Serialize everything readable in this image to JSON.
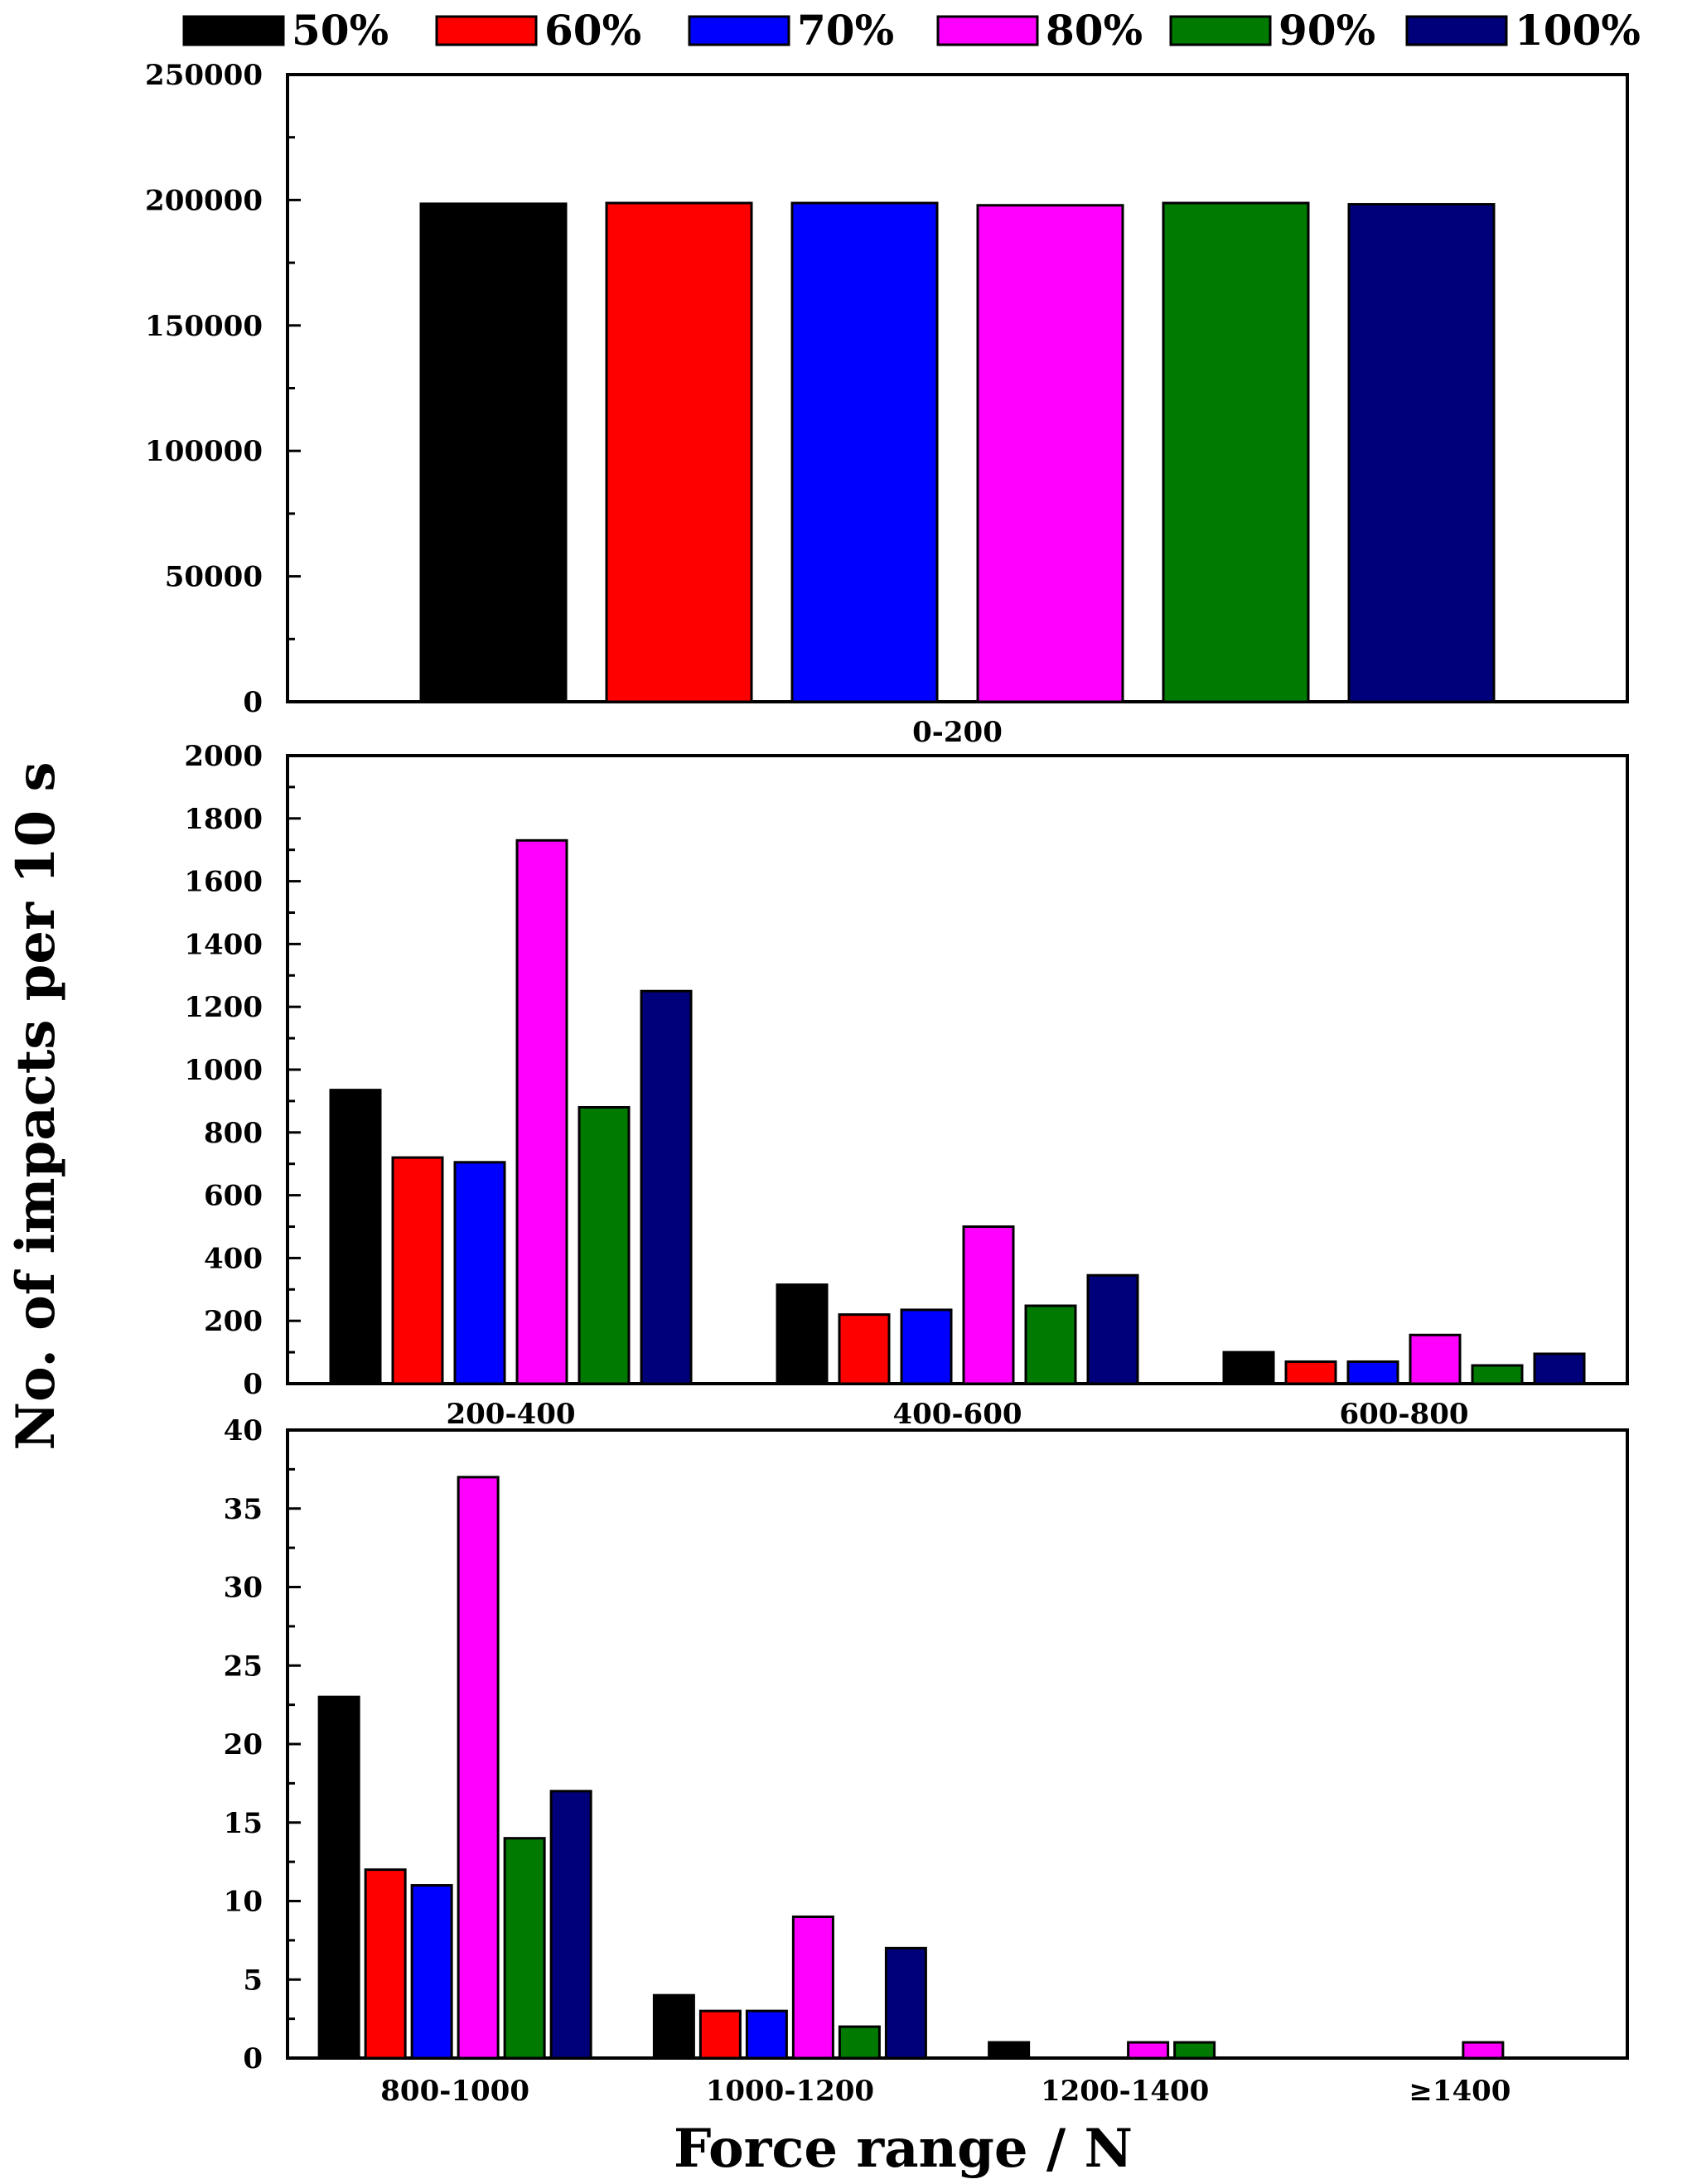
{
  "colors": {
    "50%": "#000000",
    "60%": "#ff0000",
    "70%": "#0000ff",
    "80%": "#ff00ff",
    "90%": "#007a00",
    "100%": "#00007a"
  },
  "legend": {
    "series": [
      "50%",
      "60%",
      "70%",
      "80%",
      "90%",
      "100%"
    ]
  },
  "chart_data": {
    "type": "bar",
    "ylabel": "No. of impacts per 10 s",
    "xlabel": "Force range / N",
    "series_names": [
      "50%",
      "60%",
      "70%",
      "80%",
      "90%",
      "100%"
    ],
    "panels": [
      {
        "categories": [
          "0-200"
        ],
        "ylim": [
          0,
          250000
        ],
        "yticks": [
          0,
          50000,
          100000,
          150000,
          200000,
          250000
        ],
        "ytick_labels": [
          "0",
          "50000",
          "100000",
          "150000",
          "200000",
          "250000"
        ],
        "series": [
          {
            "name": "50%",
            "values": [
              198500
            ]
          },
          {
            "name": "60%",
            "values": [
              198800
            ]
          },
          {
            "name": "70%",
            "values": [
              198800
            ]
          },
          {
            "name": "80%",
            "values": [
              197900
            ]
          },
          {
            "name": "90%",
            "values": [
              198800
            ]
          },
          {
            "name": "100%",
            "values": [
              198300
            ]
          }
        ]
      },
      {
        "categories": [
          "200-400",
          "400-600",
          "600-800"
        ],
        "ylim": [
          0,
          2000
        ],
        "yticks": [
          0,
          200,
          400,
          600,
          800,
          1000,
          1200,
          1400,
          1600,
          1800,
          2000
        ],
        "ytick_labels": [
          "0",
          "200",
          "400",
          "600",
          "800",
          "1000",
          "1200",
          "1400",
          "1600",
          "1800",
          "2000"
        ],
        "series": [
          {
            "name": "50%",
            "values": [
              935,
              315,
              100
            ]
          },
          {
            "name": "60%",
            "values": [
              720,
              220,
              70
            ]
          },
          {
            "name": "70%",
            "values": [
              705,
              235,
              70
            ]
          },
          {
            "name": "80%",
            "values": [
              1730,
              500,
              155
            ]
          },
          {
            "name": "90%",
            "values": [
              880,
              248,
              58
            ]
          },
          {
            "name": "100%",
            "values": [
              1250,
              345,
              95
            ]
          }
        ]
      },
      {
        "categories": [
          "800-1000",
          "1000-1200",
          "1200-1400",
          "≥1400"
        ],
        "ylim": [
          0,
          40
        ],
        "yticks": [
          0,
          5,
          10,
          15,
          20,
          25,
          30,
          35,
          40
        ],
        "ytick_labels": [
          "0",
          "5",
          "10",
          "15",
          "20",
          "25",
          "30",
          "35",
          "40"
        ],
        "series": [
          {
            "name": "50%",
            "values": [
              23,
              4,
              1,
              0
            ]
          },
          {
            "name": "60%",
            "values": [
              12,
              3,
              0,
              0
            ]
          },
          {
            "name": "70%",
            "values": [
              11,
              3,
              0,
              0
            ]
          },
          {
            "name": "80%",
            "values": [
              37,
              9,
              1,
              1
            ]
          },
          {
            "name": "90%",
            "values": [
              14,
              2,
              1,
              0
            ]
          },
          {
            "name": "100%",
            "values": [
              17,
              7,
              0,
              0
            ]
          }
        ]
      }
    ]
  }
}
